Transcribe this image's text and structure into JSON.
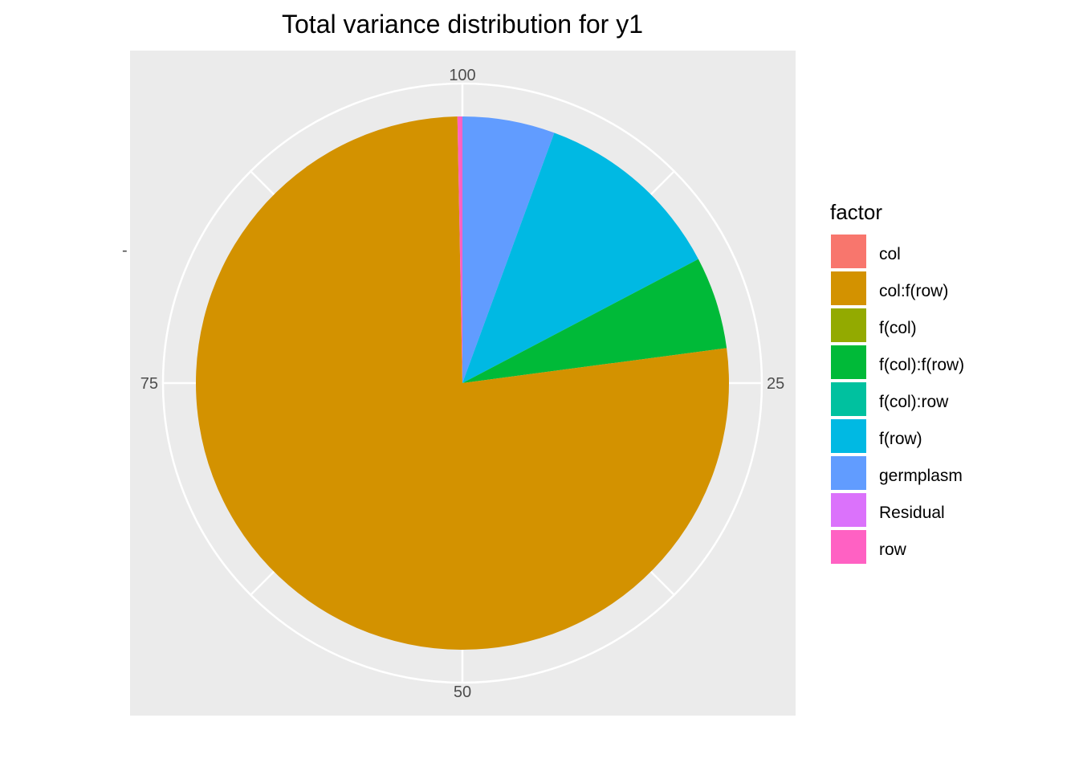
{
  "chart_data": {
    "type": "pie",
    "title": "Total variance distribution for y1",
    "xlabel": "",
    "ylabel": "",
    "y_axis_tick": "-",
    "theta_axis": {
      "range": [
        0,
        100
      ],
      "ticks": [
        100,
        25,
        50,
        75
      ],
      "direction": "clockwise from top, 0 at 12 o'clock"
    },
    "legend": {
      "title": "factor",
      "placement": "right",
      "entries": [
        {
          "label": "col",
          "color": "#F8766D"
        },
        {
          "label": "col:f(row)",
          "color": "#D39200"
        },
        {
          "label": "f(col)",
          "color": "#93AA00"
        },
        {
          "label": "f(col):f(row)",
          "color": "#00BA38"
        },
        {
          "label": "f(col):row",
          "color": "#00C19F"
        },
        {
          "label": "f(row)",
          "color": "#00B9E3"
        },
        {
          "label": "germplasm",
          "color": "#619CFF"
        },
        {
          "label": "Residual",
          "color": "#DB72FB"
        },
        {
          "label": "row",
          "color": "#FF61C3"
        }
      ]
    },
    "slices": [
      {
        "label": "col",
        "value": 0.0,
        "color": "#F8766D"
      },
      {
        "label": "germplasm",
        "value": 5.6,
        "color": "#619CFF"
      },
      {
        "label": "f(row)",
        "value": 11.7,
        "color": "#00B9E3"
      },
      {
        "label": "f(col):f(row)",
        "value": 5.6,
        "color": "#00BA38"
      },
      {
        "label": "col:f(row)",
        "value": 76.8,
        "color": "#D39200"
      },
      {
        "label": "f(col)",
        "value": 0.0,
        "color": "#93AA00"
      },
      {
        "label": "f(col):row",
        "value": 0.0,
        "color": "#00C19F"
      },
      {
        "label": "Residual",
        "value": 0.0,
        "color": "#DB72FB"
      },
      {
        "label": "row",
        "value": 0.3,
        "color": "#FF61C3"
      }
    ],
    "panel_background": "#EBEBEB",
    "grid": true,
    "grid_color": "#FFFFFF"
  }
}
